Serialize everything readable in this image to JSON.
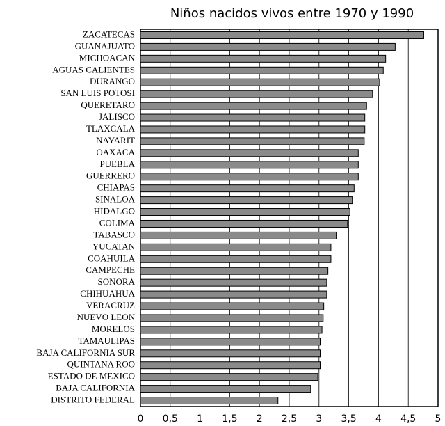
{
  "chart_data": {
    "type": "barh",
    "title": "Niños nacidos vivos entre 1970 y 1990",
    "categories": [
      "ZACATECAS",
      "GUANAJUATO",
      "MICHOACAN",
      "AGUAS CALIENTES",
      "DURANGO",
      "SAN LUIS POTOSI",
      "QUERETARO",
      "JALISCO",
      "TLAXCALA",
      "NAYARIT",
      "OAXACA",
      "PUEBLA",
      "GUERRERO",
      "CHIAPAS",
      "SINALOA",
      "HIDALGO",
      "COLIMA",
      "TABASCO",
      "YUCATAN",
      "COAHUILA",
      "CAMPECHE",
      "SONORA",
      "CHIHUAHUA",
      "VERACRUZ",
      "NUEVO LEON",
      "MORELOS",
      "TAMAULIPAS",
      "BAJA CALIFORNIA SUR",
      "QUINTANA ROO",
      "ESTADO DE MEXICO",
      "BAJA CALIFORNIA",
      "DISTRITO FEDERAL"
    ],
    "values": [
      4.76,
      4.28,
      4.12,
      4.08,
      4.02,
      3.9,
      3.8,
      3.77,
      3.77,
      3.76,
      3.66,
      3.66,
      3.66,
      3.59,
      3.56,
      3.52,
      3.48,
      3.29,
      3.2,
      3.2,
      3.15,
      3.13,
      3.13,
      3.08,
      3.07,
      3.05,
      3.02,
      3.02,
      3.02,
      2.98,
      2.86,
      2.31
    ],
    "color": "#8a8a8a",
    "xlim": [
      0,
      5
    ],
    "xticks": [
      0,
      {
        "value": 0.5,
        "label": "0,5"
      },
      1,
      {
        "value": 1.5,
        "label": "1,5"
      },
      2,
      {
        "value": 2.5,
        "label": "2,5"
      },
      3,
      {
        "value": 3.5,
        "label": "3,5"
      },
      4,
      {
        "value": 4.5,
        "label": "4,5"
      },
      5
    ],
    "grid": true
  }
}
